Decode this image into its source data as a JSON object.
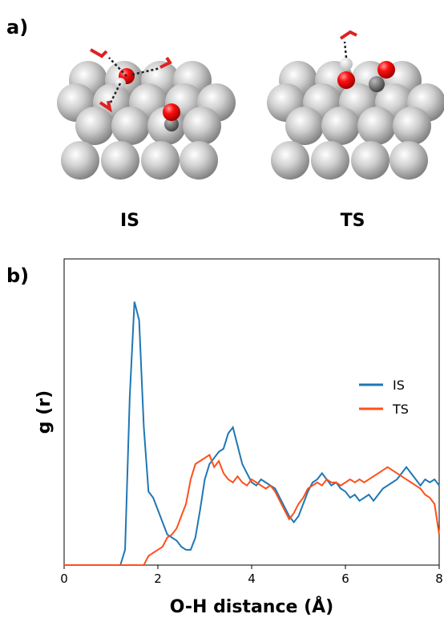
{
  "panel_labels": [
    "a)",
    "b)"
  ],
  "structures": [
    "IS",
    "TS"
  ],
  "chart_data": {
    "type": "line",
    "xlabel": "O-H distance (Å)",
    "ylabel": "g (r)",
    "x": [
      0,
      0.1,
      0.2,
      0.3,
      0.4,
      0.5,
      0.6,
      0.7,
      0.8,
      0.9,
      1,
      1.1,
      1.2,
      1.3,
      1.4,
      1.5,
      1.6,
      1.7,
      1.8,
      1.9,
      2,
      2.1,
      2.2,
      2.3,
      2.4,
      2.5,
      2.6,
      2.7,
      2.8,
      2.9,
      3,
      3.1,
      3.2,
      3.3,
      3.4,
      3.5,
      3.6,
      3.7,
      3.8,
      3.9,
      4,
      4.1,
      4.2,
      4.3,
      4.4,
      4.5,
      4.6,
      4.7,
      4.8,
      4.9,
      5,
      5.1,
      5.2,
      5.3,
      5.4,
      5.5,
      5.6,
      5.7,
      5.8,
      5.9,
      6,
      6.1,
      6.2,
      6.3,
      6.4,
      6.5,
      6.6,
      6.7,
      6.8,
      6.9,
      7,
      7.1,
      7.2,
      7.3,
      7.4,
      7.5,
      7.6,
      7.7,
      7.8,
      7.9,
      8
    ],
    "series": [
      {
        "name": "IS",
        "color": "#1f77b4",
        "values": [
          0,
          0,
          0,
          0,
          0,
          0,
          0,
          0,
          0,
          0,
          0,
          0,
          0,
          0.05,
          0.55,
          0.86,
          0.8,
          0.45,
          0.24,
          0.22,
          0.18,
          0.14,
          0.1,
          0.09,
          0.08,
          0.06,
          0.05,
          0.05,
          0.09,
          0.18,
          0.28,
          0.33,
          0.35,
          0.37,
          0.38,
          0.43,
          0.45,
          0.39,
          0.33,
          0.3,
          0.27,
          0.26,
          0.28,
          0.27,
          0.26,
          0.25,
          0.22,
          0.19,
          0.16,
          0.14,
          0.16,
          0.2,
          0.24,
          0.27,
          0.28,
          0.3,
          0.28,
          0.26,
          0.27,
          0.25,
          0.24,
          0.22,
          0.23,
          0.21,
          0.22,
          0.23,
          0.21,
          0.23,
          0.25,
          0.26,
          0.27,
          0.28,
          0.3,
          0.32,
          0.3,
          0.28,
          0.26,
          0.28,
          0.27,
          0.28,
          0.26
        ]
      },
      {
        "name": "TS",
        "color": "#ff4f1a",
        "values": [
          0,
          0,
          0,
          0,
          0,
          0,
          0,
          0,
          0,
          0,
          0,
          0,
          0,
          0,
          0,
          0,
          0,
          0,
          0.03,
          0.04,
          0.05,
          0.06,
          0.09,
          0.1,
          0.12,
          0.16,
          0.2,
          0.28,
          0.33,
          0.34,
          0.35,
          0.36,
          0.32,
          0.34,
          0.3,
          0.28,
          0.27,
          0.29,
          0.27,
          0.26,
          0.28,
          0.27,
          0.26,
          0.25,
          0.26,
          0.24,
          0.21,
          0.18,
          0.15,
          0.17,
          0.2,
          0.22,
          0.25,
          0.26,
          0.27,
          0.26,
          0.28,
          0.27,
          0.27,
          0.26,
          0.27,
          0.28,
          0.27,
          0.28,
          0.27,
          0.28,
          0.29,
          0.3,
          0.31,
          0.32,
          0.31,
          0.3,
          0.29,
          0.28,
          0.27,
          0.26,
          0.25,
          0.23,
          0.22,
          0.2,
          0.1
        ]
      }
    ],
    "xlim": [
      0,
      8
    ],
    "xticks": [
      0,
      2,
      4,
      6,
      8
    ],
    "ylim": [
      0,
      1
    ],
    "legend": "right"
  }
}
